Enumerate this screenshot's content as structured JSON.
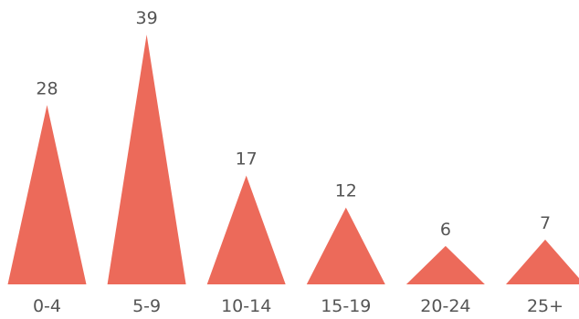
{
  "chart_data": {
    "type": "bar",
    "mark_shape": "triangle",
    "categories": [
      "0-4",
      "5-9",
      "10-14",
      "15-19",
      "20-24",
      "25+"
    ],
    "values": [
      28,
      39,
      17,
      12,
      6,
      7
    ],
    "title": "",
    "xlabel": "",
    "ylabel": "",
    "grid": false,
    "legend": "none",
    "color": "#ec6a5a"
  }
}
